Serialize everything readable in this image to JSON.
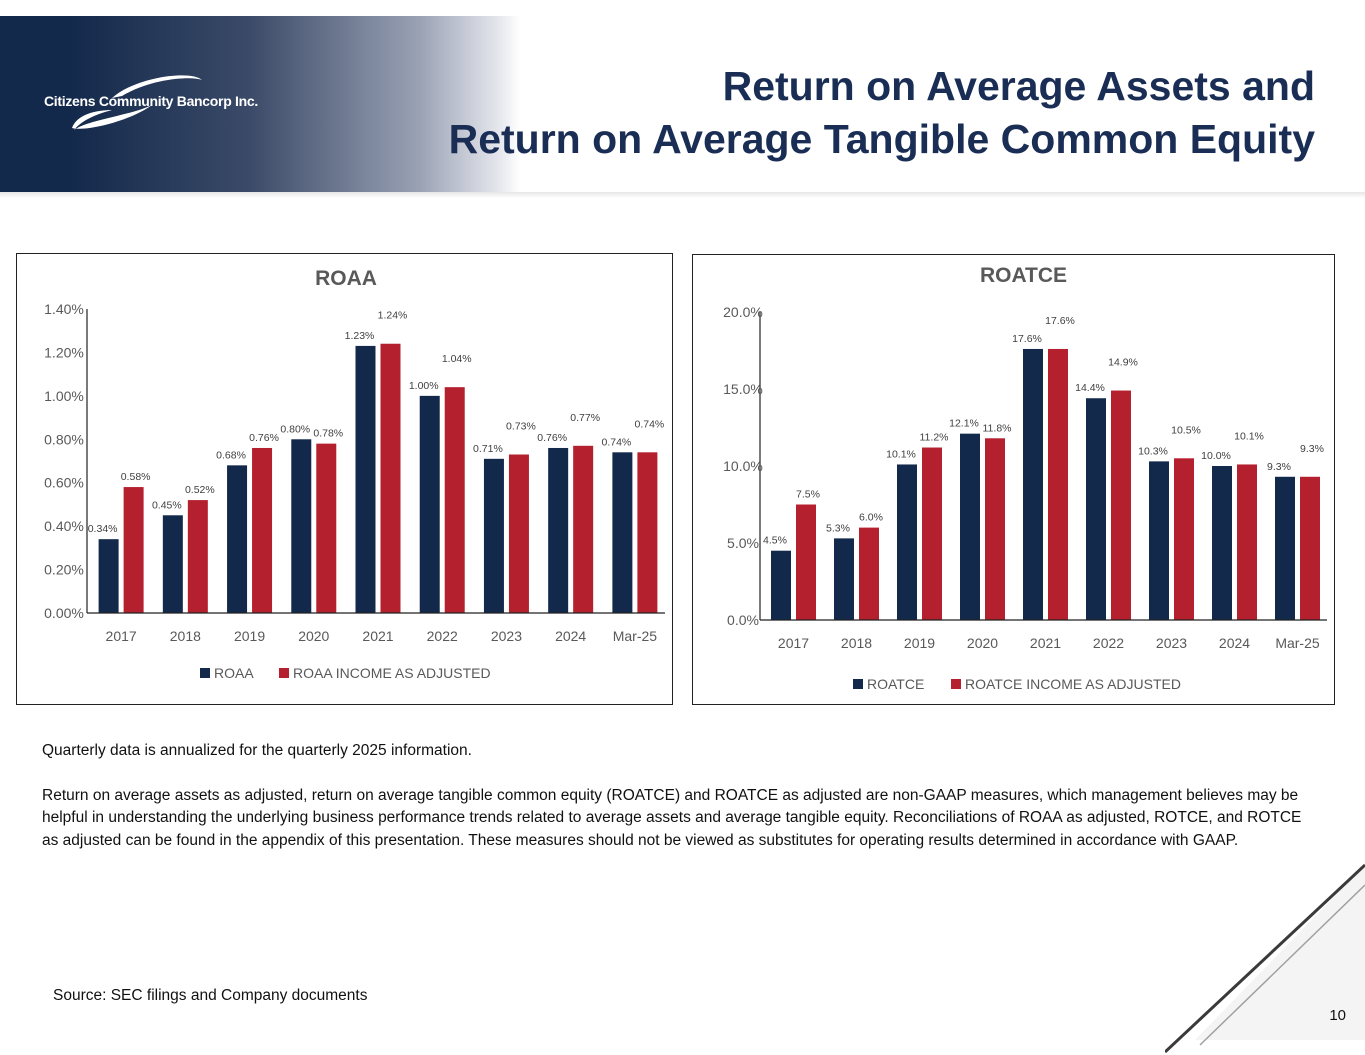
{
  "brand": {
    "logo_text": "Citizens Community Bancorp Inc.",
    "navy": "#13294b",
    "title_color": "#1a2e55"
  },
  "title": {
    "line1": "Return on Average Assets and",
    "line2": "Return on Average Tangible Common Equity"
  },
  "chart_data": [
    {
      "type": "bar",
      "title": "ROAA",
      "categories": [
        "2017",
        "2018",
        "2019",
        "2020",
        "2021",
        "2022",
        "2023",
        "2024",
        "Mar-25"
      ],
      "ylim": [
        0,
        1.4
      ],
      "yticks": [
        "0.00%",
        "0.20%",
        "0.40%",
        "0.60%",
        "0.80%",
        "1.00%",
        "1.20%",
        "1.40%"
      ],
      "ytick_values": [
        0,
        0.2,
        0.4,
        0.6,
        0.8,
        1.0,
        1.2,
        1.4
      ],
      "grid": false,
      "legend": "bottom",
      "series": [
        {
          "name": "ROAA",
          "color": "#13294b",
          "values": [
            0.34,
            0.45,
            0.68,
            0.8,
            1.23,
            1.0,
            0.71,
            0.76,
            0.74
          ],
          "labels": [
            "0.34%",
            "0.45%",
            "0.68%",
            "0.80%",
            "1.23%",
            "1.00%",
            "0.71%",
            "0.76%",
            "0.74%"
          ]
        },
        {
          "name": "ROAA INCOME AS ADJUSTED",
          "color": "#b5202e",
          "values": [
            0.58,
            0.52,
            0.76,
            0.78,
            1.24,
            1.04,
            0.73,
            0.77,
            0.74
          ],
          "labels": [
            "0.58%",
            "0.52%",
            "0.76%",
            "0.78%",
            "1.24%",
            "1.04%",
            "0.73%",
            "0.77%",
            "0.74%"
          ]
        }
      ]
    },
    {
      "type": "bar",
      "title": "ROATCE",
      "categories": [
        "2017",
        "2018",
        "2019",
        "2020",
        "2021",
        "2022",
        "2023",
        "2024",
        "Mar-25"
      ],
      "ylim": [
        0,
        20
      ],
      "yticks": [
        "0.0%",
        "5.0%",
        "10.0%",
        "15.0%",
        "20.0%"
      ],
      "ytick_values": [
        0,
        5,
        10,
        15,
        20
      ],
      "grid": false,
      "legend": "bottom",
      "series": [
        {
          "name": "ROATCE",
          "color": "#13294b",
          "values": [
            4.5,
            5.3,
            10.1,
            12.1,
            17.6,
            14.4,
            10.3,
            10.0,
            9.3
          ],
          "labels": [
            "4.5%",
            "5.3%",
            "10.1%",
            "12.1%",
            "17.6%",
            "14.4%",
            "10.3%",
            "10.0%",
            "9.3%"
          ]
        },
        {
          "name": "ROATCE INCOME AS ADJUSTED",
          "color": "#b5202e",
          "values": [
            7.5,
            6.0,
            11.2,
            11.8,
            17.6,
            14.9,
            10.5,
            10.1,
            9.3
          ],
          "labels": [
            "7.5%",
            "6.0%",
            "11.2%",
            "11.8%",
            "17.6%",
            "14.9%",
            "10.5%",
            "10.1%",
            "9.3%"
          ]
        }
      ]
    }
  ],
  "notes": {
    "line1": "Quarterly data is annualized for the quarterly 2025 information.",
    "paragraph": "Return on average assets as adjusted, return on average tangible common equity (ROATCE) and ROATCE as adjusted are non-GAAP measures, which management believes may be helpful in understanding the underlying business performance trends related to average assets and average tangible equity. Reconciliations of ROAA as adjusted, ROTCE, and ROTCE as adjusted can be found in the appendix of this presentation. These measures should not be viewed as substitutes for operating results determined in accordance with GAAP."
  },
  "source": "Source: SEC filings and Company documents",
  "page_number": "10"
}
